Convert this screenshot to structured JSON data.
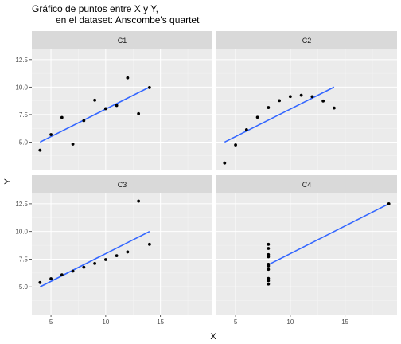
{
  "chart_data": {
    "type": "scatter",
    "title_line1": "Gráfico de puntos entre X y Y,",
    "title_line2": "en el dataset: Anscombe's quartet",
    "xlabel": "X",
    "ylabel": "Y",
    "xlim": [
      3.25,
      19.75
    ],
    "ylim": [
      2.5,
      13.5
    ],
    "x_ticks": [
      5,
      10,
      15
    ],
    "y_ticks": [
      5.0,
      7.5,
      10.0,
      12.5
    ],
    "y_tick_labels": [
      "5.0",
      "7.5",
      "10.0",
      "12.5"
    ],
    "facets": [
      {
        "label": "C1",
        "x": [
          10,
          8,
          13,
          9,
          11,
          14,
          6,
          4,
          12,
          7,
          5
        ],
        "y": [
          8.04,
          6.95,
          7.58,
          8.81,
          8.33,
          9.96,
          7.24,
          4.26,
          10.84,
          4.82,
          5.68
        ],
        "fit_x": [
          4,
          14
        ],
        "fit_y": [
          5.0,
          10.0
        ]
      },
      {
        "label": "C2",
        "x": [
          10,
          8,
          13,
          9,
          11,
          14,
          6,
          4,
          12,
          7,
          5
        ],
        "y": [
          9.14,
          8.14,
          8.74,
          8.77,
          9.26,
          8.1,
          6.13,
          3.1,
          9.13,
          7.26,
          4.74
        ],
        "fit_x": [
          4,
          14
        ],
        "fit_y": [
          5.0,
          10.0
        ]
      },
      {
        "label": "C3",
        "x": [
          10,
          8,
          13,
          9,
          11,
          14,
          6,
          4,
          12,
          7,
          5
        ],
        "y": [
          7.46,
          6.77,
          12.74,
          7.11,
          7.81,
          8.84,
          6.08,
          5.39,
          8.15,
          6.42,
          5.73
        ],
        "fit_x": [
          4,
          14
        ],
        "fit_y": [
          5.0,
          10.0
        ]
      },
      {
        "label": "C4",
        "x": [
          8,
          8,
          8,
          8,
          8,
          8,
          8,
          19,
          8,
          8,
          8
        ],
        "y": [
          6.58,
          5.76,
          7.71,
          8.84,
          8.47,
          7.04,
          5.25,
          12.5,
          5.56,
          7.91,
          6.89
        ],
        "fit_x": [
          8,
          19
        ],
        "fit_y": [
          7.0,
          12.5
        ]
      }
    ],
    "colors": {
      "panel_bg": "#ebebeb",
      "strip_bg": "#d9d9d9",
      "grid_major": "#ffffff",
      "grid_minor": "#f5f5f5",
      "point": "#000000",
      "fit_line": "#3366ff",
      "tick_text": "#4d4d4d"
    },
    "grid": true
  }
}
